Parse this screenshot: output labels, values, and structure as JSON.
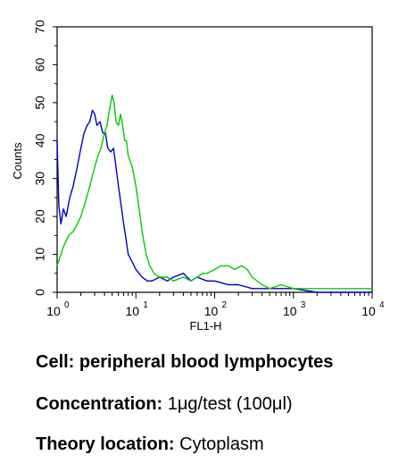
{
  "chart_data": {
    "type": "line",
    "xlabel": "FL1-H",
    "ylabel": "Counts",
    "x_scale": "log",
    "xlim": [
      1,
      10000
    ],
    "ylim": [
      0,
      70
    ],
    "x_ticks": [
      {
        "value": 1,
        "base": "10",
        "exp": "0"
      },
      {
        "value": 10,
        "base": "10",
        "exp": "1"
      },
      {
        "value": 100,
        "base": "10",
        "exp": "2"
      },
      {
        "value": 1000,
        "base": "10",
        "exp": "3"
      },
      {
        "value": 10000,
        "base": "10",
        "exp": "4"
      }
    ],
    "y_ticks": [
      "0",
      "10",
      "20",
      "30",
      "40",
      "50",
      "60",
      "70"
    ],
    "series": [
      {
        "color": "#0000cc",
        "points": [
          [
            1.0,
            40
          ],
          [
            1.05,
            23
          ],
          [
            1.12,
            18
          ],
          [
            1.2,
            22
          ],
          [
            1.3,
            20
          ],
          [
            1.45,
            25
          ],
          [
            1.6,
            28
          ],
          [
            1.8,
            33
          ],
          [
            2.0,
            38
          ],
          [
            2.2,
            42
          ],
          [
            2.4,
            44
          ],
          [
            2.6,
            45
          ],
          [
            2.8,
            48
          ],
          [
            3.0,
            47
          ],
          [
            3.2,
            44
          ],
          [
            3.5,
            45
          ],
          [
            3.8,
            42
          ],
          [
            4.1,
            42
          ],
          [
            4.4,
            38
          ],
          [
            4.8,
            37
          ],
          [
            5.2,
            38
          ],
          [
            5.6,
            33
          ],
          [
            6.0,
            28
          ],
          [
            6.5,
            23
          ],
          [
            7.0,
            18
          ],
          [
            7.5,
            14
          ],
          [
            8.0,
            10
          ],
          [
            9.0,
            8
          ],
          [
            10.0,
            6
          ],
          [
            11.0,
            5
          ],
          [
            12.0,
            4
          ],
          [
            14.0,
            3
          ],
          [
            16.0,
            3
          ],
          [
            20.0,
            4
          ],
          [
            25.0,
            3
          ],
          [
            30.0,
            4
          ],
          [
            40.0,
            5
          ],
          [
            50.0,
            3
          ],
          [
            60.0,
            4
          ],
          [
            80.0,
            3
          ],
          [
            100.0,
            3
          ],
          [
            150.0,
            2
          ],
          [
            200.0,
            2
          ],
          [
            300.0,
            1
          ],
          [
            500.0,
            1
          ],
          [
            1000.0,
            1
          ],
          [
            2000.0,
            0
          ],
          [
            5000.0,
            0
          ],
          [
            10000.0,
            0
          ]
        ]
      },
      {
        "color": "#00cc00",
        "points": [
          [
            1.0,
            7
          ],
          [
            1.2,
            12
          ],
          [
            1.4,
            15
          ],
          [
            1.6,
            16
          ],
          [
            1.8,
            18
          ],
          [
            2.0,
            20
          ],
          [
            2.3,
            24
          ],
          [
            2.6,
            28
          ],
          [
            3.0,
            33
          ],
          [
            3.3,
            36
          ],
          [
            3.6,
            38
          ],
          [
            4.0,
            42
          ],
          [
            4.3,
            44
          ],
          [
            4.6,
            48
          ],
          [
            5.0,
            52
          ],
          [
            5.3,
            50
          ],
          [
            5.6,
            45
          ],
          [
            6.0,
            44
          ],
          [
            6.4,
            47
          ],
          [
            6.8,
            44
          ],
          [
            7.2,
            40
          ],
          [
            7.6,
            40
          ],
          [
            8.0,
            36
          ],
          [
            9.0,
            33
          ],
          [
            10.0,
            28
          ],
          [
            11.0,
            22
          ],
          [
            12.0,
            16
          ],
          [
            13.5,
            10
          ],
          [
            15.0,
            7
          ],
          [
            17.0,
            5
          ],
          [
            20.0,
            4
          ],
          [
            25.0,
            4
          ],
          [
            30.0,
            3
          ],
          [
            40.0,
            4
          ],
          [
            50.0,
            3
          ],
          [
            60.0,
            4
          ],
          [
            70.0,
            5
          ],
          [
            80.0,
            5
          ],
          [
            100.0,
            6
          ],
          [
            120.0,
            7
          ],
          [
            150.0,
            7
          ],
          [
            180.0,
            6
          ],
          [
            220.0,
            7
          ],
          [
            260.0,
            6
          ],
          [
            300.0,
            4
          ],
          [
            400.0,
            2
          ],
          [
            500.0,
            1
          ],
          [
            700.0,
            2
          ],
          [
            1000.0,
            1
          ],
          [
            2000.0,
            1
          ],
          [
            3000.0,
            1
          ],
          [
            5000.0,
            1
          ],
          [
            10000.0,
            1
          ]
        ]
      }
    ]
  },
  "captions": [
    {
      "key": "Cell: peripheral blood lymphocytes",
      "value": ""
    },
    {
      "key": "Concentration:",
      "value": "1μg/test (100μl)"
    },
    {
      "key": "Theory location:",
      "value": "Cytoplasm"
    }
  ]
}
